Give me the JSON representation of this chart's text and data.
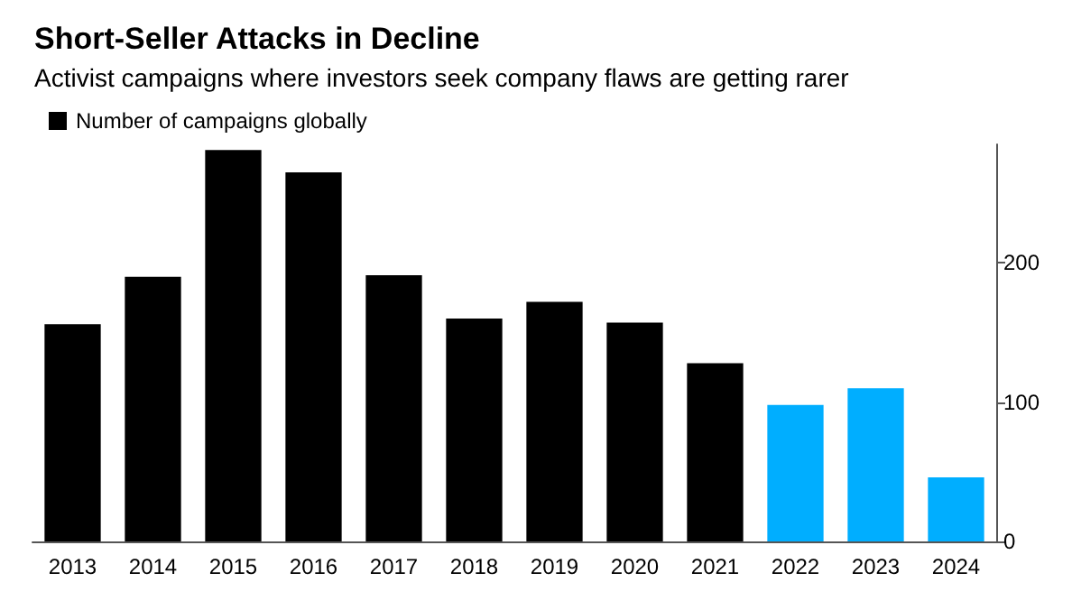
{
  "chart_data": {
    "type": "bar",
    "title": "Short-Seller Attacks in Decline",
    "subtitle": "Activist campaigns where investors seek company flaws are getting rarer",
    "categories": [
      "2013",
      "2014",
      "2015",
      "2016",
      "2017",
      "2018",
      "2019",
      "2020",
      "2021",
      "2022",
      "2023",
      "2024"
    ],
    "series": [
      {
        "name": "Number of campaigns globally",
        "color": "#000000",
        "colors": [
          "#000000",
          "#000000",
          "#000000",
          "#000000",
          "#000000",
          "#000000",
          "#000000",
          "#000000",
          "#000000",
          "#00aeff",
          "#00aeff",
          "#00aeff"
        ],
        "values": [
          156,
          190,
          281,
          265,
          191,
          160,
          172,
          157,
          128,
          98,
          110,
          46
        ]
      }
    ],
    "ylim": [
      0,
      285
    ],
    "yticks": [
      0,
      100,
      200
    ],
    "legend": "top left"
  }
}
